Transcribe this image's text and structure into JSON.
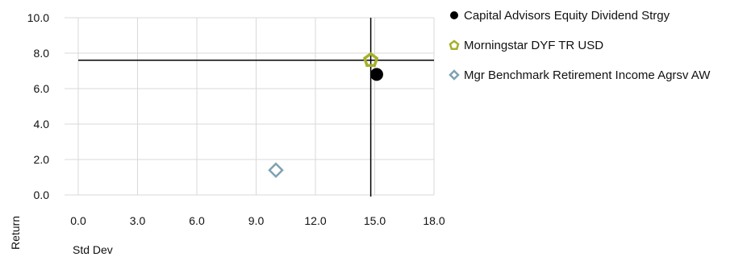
{
  "chart_data": {
    "type": "scatter",
    "xlabel": "Std Dev",
    "ylabel": "Return",
    "xlim": [
      0,
      18
    ],
    "ylim": [
      0,
      10
    ],
    "x_ticks": [
      "0.0",
      "3.0",
      "6.0",
      "9.0",
      "12.0",
      "15.0",
      "18.0"
    ],
    "y_ticks": [
      "0.0",
      "2.0",
      "4.0",
      "6.0",
      "8.0",
      "10.0"
    ],
    "grid": true,
    "legend_position": "right",
    "series": [
      {
        "name": "Capital Advisors Equity Dividend Strgy",
        "x": 15.1,
        "y": 6.8,
        "marker": "circle",
        "color": "#000000"
      },
      {
        "name": "Morningstar DYF TR USD",
        "x": 14.8,
        "y": 7.6,
        "marker": "pentagon",
        "color": "#a5b02b"
      },
      {
        "name": "Mgr Benchmark Retirement Income Agrsv AW",
        "x": 10.0,
        "y": 1.4,
        "marker": "diamond",
        "color": "#7fa2b3"
      }
    ],
    "reference_lines": {
      "x": 14.8,
      "y": 7.6
    }
  }
}
